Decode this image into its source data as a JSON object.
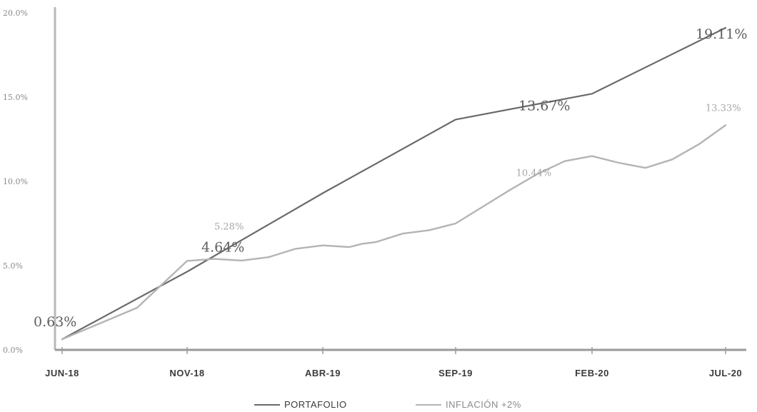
{
  "chart_data": {
    "type": "line",
    "title": "",
    "xlabel": "",
    "ylabel": "",
    "ylim": [
      0,
      20
    ],
    "yticks": [
      0,
      5,
      10,
      15,
      20
    ],
    "ytick_labels": [
      "0.0%",
      "5.0%",
      "10.0%",
      "15.0%",
      "20.0%"
    ],
    "xlim": [
      0,
      25
    ],
    "xticks": [
      0,
      5,
      10,
      15,
      20,
      25
    ],
    "xtick_labels": [
      "JUN-18",
      "NOV-18",
      "ABR-19",
      "SEP-19",
      "FEB-20",
      "JUL-20"
    ],
    "grid": false,
    "legend_position": "bottom-center",
    "series": [
      {
        "name": "PORTAFOLIO",
        "color": "#6a6a6a",
        "x": [
          0,
          5,
          10,
          15,
          20,
          25
        ],
        "y": [
          0.63,
          4.64,
          9.3,
          13.67,
          15.2,
          19.11
        ]
      },
      {
        "name": "INFLACIÓN +2%",
        "color": "#b4b4b4",
        "x": [
          0,
          3,
          5,
          6,
          7,
          8,
          9,
          10,
          11,
          11.5,
          12,
          13,
          14,
          15,
          16,
          17,
          18,
          19,
          20,
          21,
          22,
          23,
          24,
          25
        ],
        "y": [
          0.63,
          2.5,
          5.28,
          5.4,
          5.3,
          5.5,
          6.0,
          6.2,
          6.1,
          6.3,
          6.4,
          6.9,
          7.1,
          7.5,
          8.5,
          9.5,
          10.44,
          11.2,
          11.5,
          11.1,
          10.8,
          11.3,
          12.2,
          13.33
        ]
      }
    ],
    "annotations": [
      {
        "text": "0.63%",
        "series": 0,
        "x": 0,
        "y": 0.63
      },
      {
        "text": "4.64%",
        "series": 0,
        "x": 5,
        "y": 4.64
      },
      {
        "text": "13.67%",
        "series": 0,
        "x": 15,
        "y": 13.67
      },
      {
        "text": "19.11%",
        "series": 0,
        "x": 25,
        "y": 19.11
      },
      {
        "text": "5.28%",
        "series": 1,
        "x": 5,
        "y": 5.28
      },
      {
        "text": "10.44%",
        "series": 1,
        "x": 18,
        "y": 10.44
      },
      {
        "text": "13.33%",
        "series": 1,
        "x": 25,
        "y": 13.33
      }
    ]
  }
}
